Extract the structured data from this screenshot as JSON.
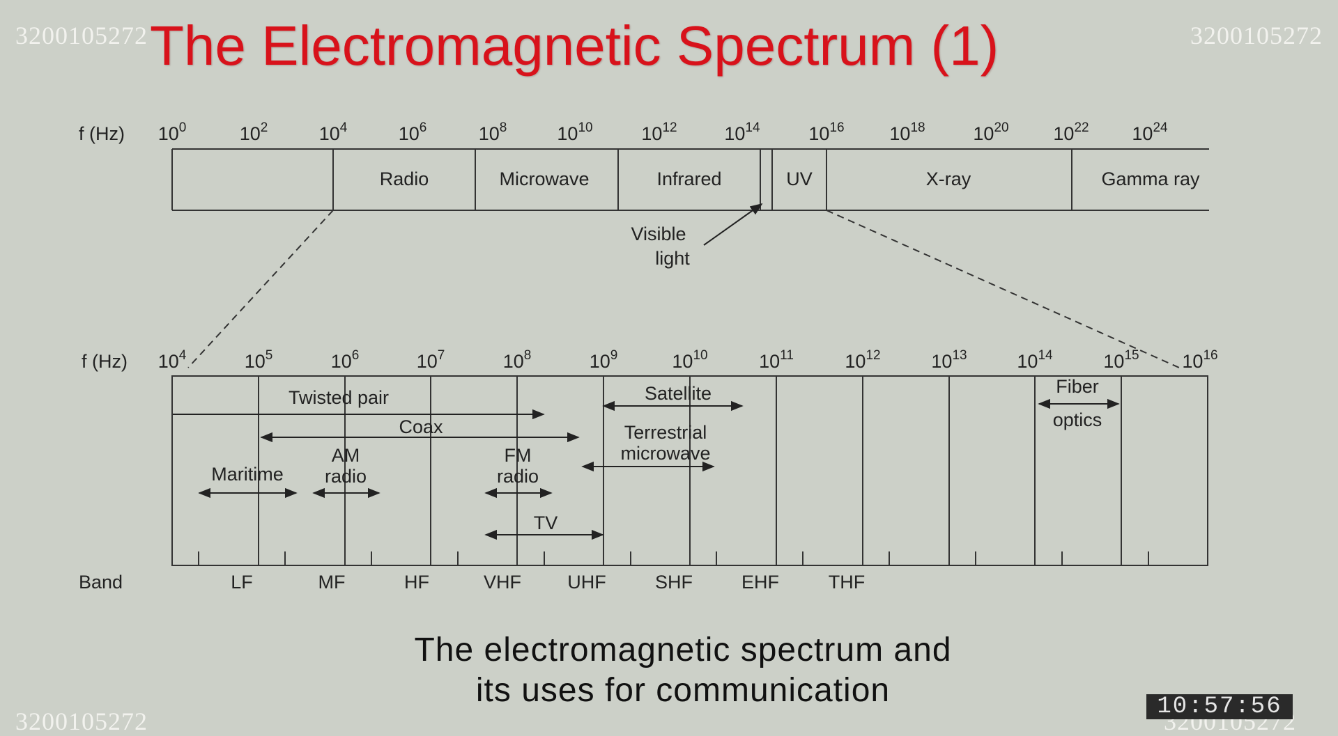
{
  "watermark": {
    "id_text": "3200105272"
  },
  "title": "The Electromagnetic Spectrum (1)",
  "top_scale": {
    "axis_label": "f (Hz)",
    "ticks": [
      {
        "base": "10",
        "exp": "0"
      },
      {
        "base": "10",
        "exp": "2"
      },
      {
        "base": "10",
        "exp": "4"
      },
      {
        "base": "10",
        "exp": "6"
      },
      {
        "base": "10",
        "exp": "8"
      },
      {
        "base": "10",
        "exp": "10"
      },
      {
        "base": "10",
        "exp": "12"
      },
      {
        "base": "10",
        "exp": "14"
      },
      {
        "base": "10",
        "exp": "16"
      },
      {
        "base": "10",
        "exp": "18"
      },
      {
        "base": "10",
        "exp": "20"
      },
      {
        "base": "10",
        "exp": "22"
      },
      {
        "base": "10",
        "exp": "24"
      }
    ],
    "regions": [
      "Radio",
      "Microwave",
      "Infrared",
      "UV",
      "X-ray",
      "Gamma ray"
    ],
    "visible_label_line1": "Visible",
    "visible_label_line2": "light"
  },
  "bottom_scale": {
    "axis_label": "f (Hz)",
    "ticks": [
      {
        "base": "10",
        "exp": "4"
      },
      {
        "base": "10",
        "exp": "5"
      },
      {
        "base": "10",
        "exp": "6"
      },
      {
        "base": "10",
        "exp": "7"
      },
      {
        "base": "10",
        "exp": "8"
      },
      {
        "base": "10",
        "exp": "9"
      },
      {
        "base": "10",
        "exp": "10"
      },
      {
        "base": "10",
        "exp": "11"
      },
      {
        "base": "10",
        "exp": "12"
      },
      {
        "base": "10",
        "exp": "13"
      },
      {
        "base": "10",
        "exp": "14"
      },
      {
        "base": "10",
        "exp": "15"
      },
      {
        "base": "10",
        "exp": "16"
      }
    ],
    "uses": {
      "twisted_pair": "Twisted pair",
      "coax": "Coax",
      "maritime": "Maritime",
      "am_radio_1": "AM",
      "am_radio_2": "radio",
      "fm_radio_1": "FM",
      "fm_radio_2": "radio",
      "tv": "TV",
      "satellite": "Satellite",
      "terrestrial_1": "Terrestrial",
      "terrestrial_2": "microwave",
      "fiber_1": "Fiber",
      "fiber_2": "optics"
    },
    "band_label": "Band",
    "bands": [
      "LF",
      "MF",
      "HF",
      "VHF",
      "UHF",
      "SHF",
      "EHF",
      "THF"
    ]
  },
  "caption_line1": "The electromagnetic spectrum and",
  "caption_line2": "its uses for communication",
  "clock": "10:57:56",
  "colors": {
    "background": "#ccd0c8",
    "title": "#d8121b",
    "line": "#333333"
  }
}
